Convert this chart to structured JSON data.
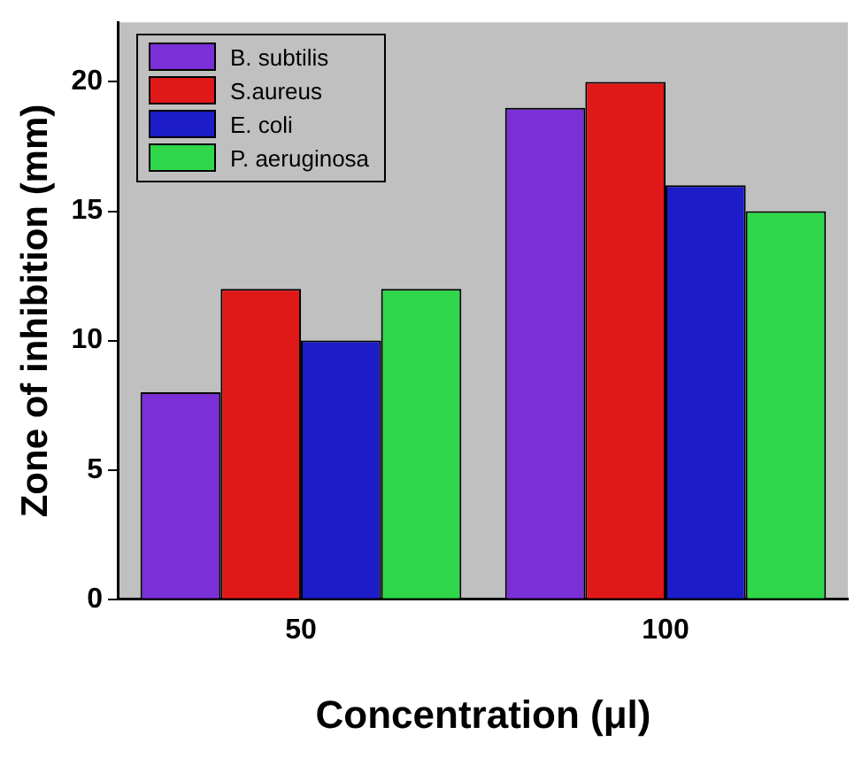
{
  "chart_data": {
    "type": "bar",
    "xlabel": "Concentration (μl)",
    "ylabel": "Zone of inhibition (mm)",
    "categories": [
      "50",
      "100"
    ],
    "series": [
      {
        "name": "B. subtilis",
        "color": "#7b2fd6",
        "values": [
          8,
          19
        ]
      },
      {
        "name": "S.aureus",
        "color": "#e01818",
        "values": [
          12,
          20
        ]
      },
      {
        "name": "E. coli",
        "color": "#1c1cc8",
        "values": [
          10,
          16
        ]
      },
      {
        "name": "P. aeruginosa",
        "color": "#2ed84a",
        "values": [
          12,
          15
        ]
      }
    ],
    "ylim": [
      0,
      22.3
    ],
    "yticks": [
      0,
      5,
      10,
      15,
      20
    ],
    "grid": false,
    "legend": "top left"
  }
}
